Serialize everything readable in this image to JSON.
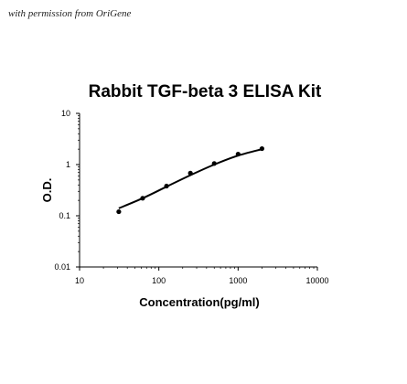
{
  "watermark": "with permission from OriGene",
  "chart_data": {
    "type": "scatter",
    "title": "Rabbit TGF-beta 3 ELISA Kit",
    "xlabel": "Concentration(pg/ml)",
    "ylabel": "O.D.",
    "x_scale": "log",
    "y_scale": "log",
    "xlim": [
      10,
      10000
    ],
    "ylim": [
      0.01,
      10
    ],
    "x_ticks": [
      "10",
      "100",
      "1000",
      "10000"
    ],
    "y_ticks": [
      "10",
      "1",
      "0.1",
      "0.01"
    ],
    "grid": false,
    "series": [
      {
        "points": [
          {
            "x": 31.25,
            "y": 0.12
          },
          {
            "x": 62.5,
            "y": 0.22
          },
          {
            "x": 125,
            "y": 0.38
          },
          {
            "x": 250,
            "y": 0.68
          },
          {
            "x": 500,
            "y": 1.05
          },
          {
            "x": 1000,
            "y": 1.6
          },
          {
            "x": 2000,
            "y": 2.05
          }
        ],
        "fit_curve": [
          {
            "x": 31.25,
            "y": 0.14
          },
          {
            "x": 62.5,
            "y": 0.22
          },
          {
            "x": 125,
            "y": 0.37
          },
          {
            "x": 250,
            "y": 0.62
          },
          {
            "x": 500,
            "y": 1.0
          },
          {
            "x": 1000,
            "y": 1.5
          },
          {
            "x": 2000,
            "y": 2.0
          }
        ],
        "color": "#000000"
      }
    ]
  }
}
